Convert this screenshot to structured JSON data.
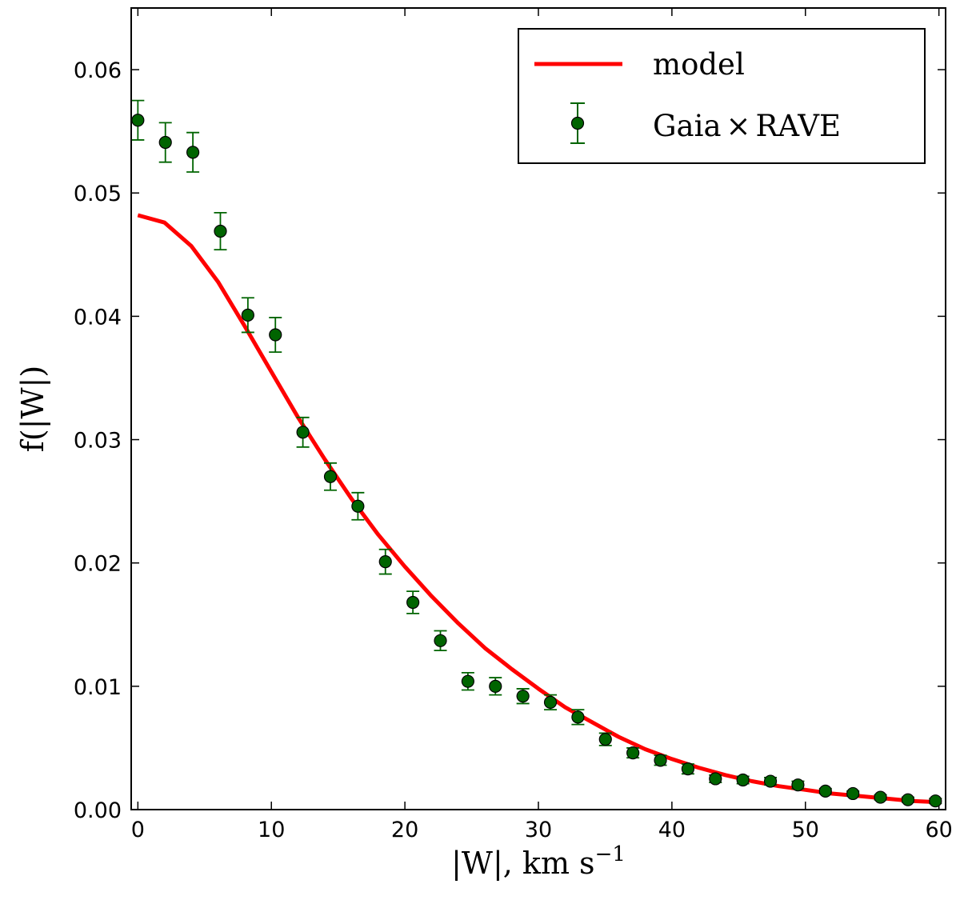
{
  "chart_data": {
    "type": "scatter",
    "title": "",
    "xlabel": "|W|,  km s",
    "xlabel_superscript": "−1",
    "ylabel": "f(|W|)",
    "xlim": [
      -0.5,
      60.5
    ],
    "ylim": [
      0.0,
      0.065
    ],
    "xticks": [
      0,
      10,
      20,
      30,
      40,
      50,
      60
    ],
    "xtick_labels": [
      "0",
      "10",
      "20",
      "30",
      "40",
      "50",
      "60"
    ],
    "yticks": [
      0.0,
      0.01,
      0.02,
      0.03,
      0.04,
      0.05,
      0.06
    ],
    "ytick_labels": [
      "0.00",
      "0.01",
      "0.02",
      "0.03",
      "0.04",
      "0.05",
      "0.06"
    ],
    "grid": false,
    "legend_position": "top-right",
    "series": [
      {
        "name": "model",
        "kind": "line",
        "color": "#ff0000",
        "x": [
          0,
          2,
          4,
          6,
          8,
          10,
          12,
          14,
          16,
          18,
          20,
          22,
          24,
          26,
          28,
          30,
          32,
          34,
          36,
          38,
          40,
          42,
          44,
          46,
          48,
          50,
          52,
          54,
          56,
          58,
          60
        ],
        "y": [
          0.0482,
          0.0476,
          0.0457,
          0.0428,
          0.0392,
          0.0355,
          0.0318,
          0.0284,
          0.0252,
          0.0223,
          0.0197,
          0.0173,
          0.0151,
          0.0131,
          0.0114,
          0.0098,
          0.0083,
          0.0071,
          0.0059,
          0.0049,
          0.0041,
          0.0034,
          0.0028,
          0.0023,
          0.0019,
          0.0016,
          0.0013,
          0.0011,
          0.0009,
          0.0007,
          0.0006
        ]
      },
      {
        "name": "Gaia",
        "name_suffix": "RAVE",
        "name_operator": "×",
        "kind": "errorbar",
        "color": "#006400",
        "x": [
          0,
          2.06,
          4.12,
          6.18,
          8.24,
          10.3,
          12.36,
          14.42,
          16.48,
          18.54,
          20.6,
          22.66,
          24.72,
          26.78,
          28.84,
          30.9,
          32.96,
          35.02,
          37.08,
          39.14,
          41.2,
          43.26,
          45.32,
          47.38,
          49.44,
          51.5,
          53.56,
          55.62,
          57.68,
          59.74
        ],
        "y": [
          0.0559,
          0.0541,
          0.0533,
          0.0469,
          0.0401,
          0.0385,
          0.0306,
          0.027,
          0.0246,
          0.0201,
          0.0168,
          0.0137,
          0.0104,
          0.01,
          0.0092,
          0.0087,
          0.0075,
          0.0057,
          0.0046,
          0.004,
          0.0033,
          0.0025,
          0.0024,
          0.0023,
          0.002,
          0.0015,
          0.0013,
          0.001,
          0.0008,
          0.0007
        ],
        "yerr": [
          0.0016,
          0.0016,
          0.0016,
          0.0015,
          0.0014,
          0.0014,
          0.0012,
          0.0011,
          0.0011,
          0.001,
          0.0009,
          0.0008,
          0.0007,
          0.0007,
          0.0006,
          0.0006,
          0.0006,
          0.0005,
          0.0004,
          0.0004,
          0.0004,
          0.0003,
          0.0003,
          0.0003,
          0.0003,
          0.0002,
          0.0002,
          0.0002,
          0.0002,
          0.0002
        ]
      }
    ]
  }
}
